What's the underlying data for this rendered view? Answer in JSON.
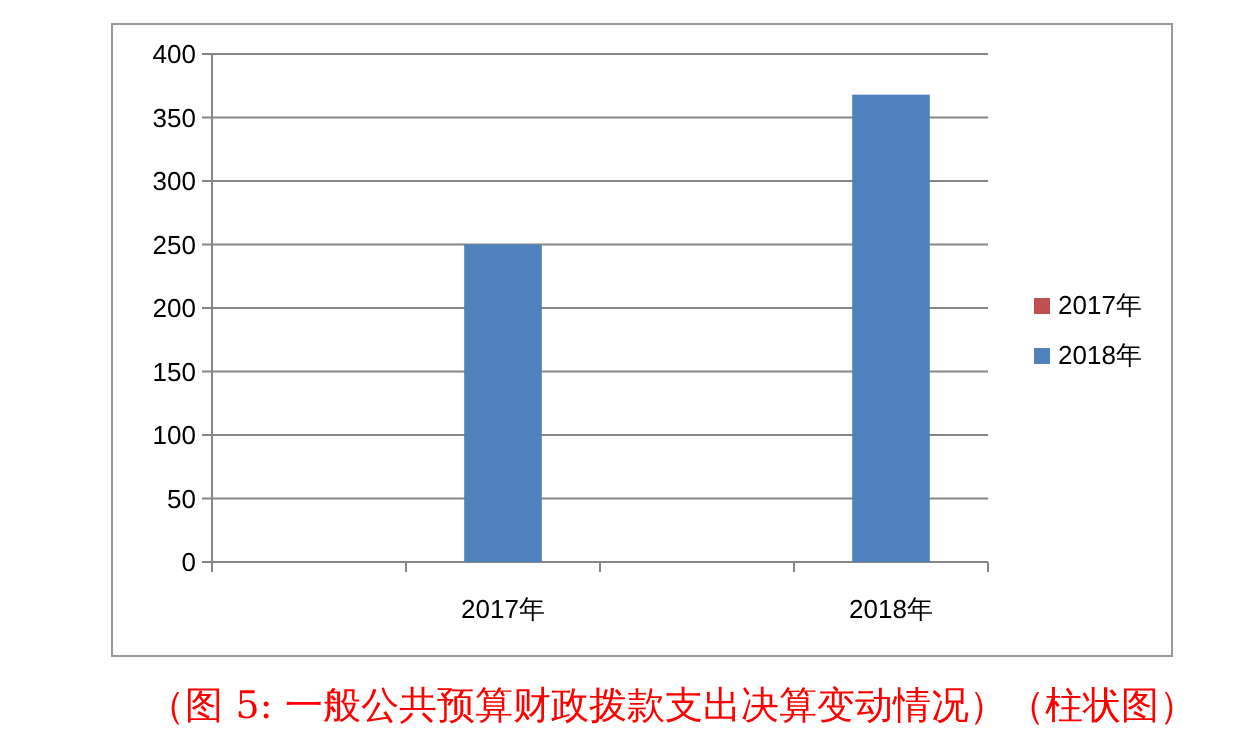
{
  "chart_data": {
    "type": "bar",
    "categories": [
      null,
      "2017年",
      null,
      "2018年"
    ],
    "series": [
      {
        "name": "2017年",
        "color": "#c0504d",
        "values": [
          null,
          null,
          null,
          null
        ]
      },
      {
        "name": "2018年",
        "color": "#4f81bd",
        "values": [
          null,
          250,
          null,
          368
        ]
      }
    ],
    "ylim": [
      0,
      400
    ],
    "yticks": [
      0,
      50,
      100,
      150,
      200,
      250,
      300,
      350,
      400
    ],
    "grid": "y",
    "legend": "right",
    "annotations": [
      "（图 5: 一般公共预算财政拨款支出决算变动情况）（柱状图）"
    ]
  }
}
